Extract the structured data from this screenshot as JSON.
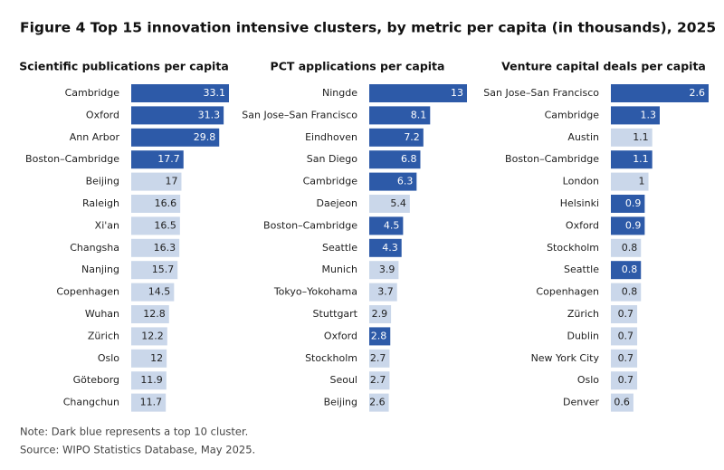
{
  "title": "Figure 4 Top 15 innovation intensive clusters, by metric per capita (in thousands), 2025",
  "note": "Note: Dark blue represents a top 10 cluster.",
  "source": "Source: WIPO Statistics Database, May 2025.",
  "chart_data": [
    {
      "type": "bar",
      "orientation": "horizontal",
      "title": "Scientific publications per capita",
      "categories": [
        "Cambridge",
        "Oxford",
        "Ann Arbor",
        "Boston–Cambridge",
        "Beijing",
        "Raleigh",
        "Xi'an",
        "Changsha",
        "Nanjing",
        "Copenhagen",
        "Wuhan",
        "Zürich",
        "Oslo",
        "Göteborg",
        "Changchun"
      ],
      "values": [
        33.1,
        31.3,
        29.8,
        17.7,
        17,
        16.6,
        16.5,
        16.3,
        15.7,
        14.5,
        12.8,
        12.2,
        12,
        11.9,
        11.7
      ],
      "colors": [
        "#2d5aa8",
        "#2d5aa8",
        "#2d5aa8",
        "#2d5aa8",
        "#cad7ea",
        "#cad7ea",
        "#cad7ea",
        "#cad7ea",
        "#cad7ea",
        "#cad7ea",
        "#cad7ea",
        "#cad7ea",
        "#cad7ea",
        "#cad7ea",
        "#cad7ea"
      ]
    },
    {
      "type": "bar",
      "orientation": "horizontal",
      "title": "PCT applications per capita",
      "categories": [
        "Ningde",
        "San Jose–San Francisco",
        "Eindhoven",
        "San Diego",
        "Cambridge",
        "Daejeon",
        "Boston–Cambridge",
        "Seattle",
        "Munich",
        "Tokyo–Yokohama",
        "Stuttgart",
        "Oxford",
        "Stockholm",
        "Seoul",
        "Beijing"
      ],
      "values": [
        13,
        8.1,
        7.2,
        6.8,
        6.3,
        5.4,
        4.5,
        4.3,
        3.9,
        3.7,
        2.9,
        2.8,
        2.7,
        2.7,
        2.6
      ],
      "colors": [
        "#2d5aa8",
        "#2d5aa8",
        "#2d5aa8",
        "#2d5aa8",
        "#2d5aa8",
        "#cad7ea",
        "#2d5aa8",
        "#2d5aa8",
        "#cad7ea",
        "#cad7ea",
        "#cad7ea",
        "#2d5aa8",
        "#cad7ea",
        "#cad7ea",
        "#cad7ea"
      ]
    },
    {
      "type": "bar",
      "orientation": "horizontal",
      "title": "Venture capital deals per capita",
      "categories": [
        "San Jose–San Francisco",
        "Cambridge",
        "Austin",
        "Boston–Cambridge",
        "London",
        "Helsinki",
        "Oxford",
        "Stockholm",
        "Seattle",
        "Copenhagen",
        "Zürich",
        "Dublin",
        "New York City",
        "Oslo",
        "Denver"
      ],
      "values": [
        2.6,
        1.3,
        1.1,
        1.1,
        1,
        0.9,
        0.9,
        0.8,
        0.8,
        0.8,
        0.7,
        0.7,
        0.7,
        0.7,
        0.6
      ],
      "colors": [
        "#2d5aa8",
        "#2d5aa8",
        "#cad7ea",
        "#2d5aa8",
        "#cad7ea",
        "#2d5aa8",
        "#2d5aa8",
        "#cad7ea",
        "#2d5aa8",
        "#cad7ea",
        "#cad7ea",
        "#cad7ea",
        "#cad7ea",
        "#cad7ea",
        "#cad7ea"
      ]
    }
  ]
}
